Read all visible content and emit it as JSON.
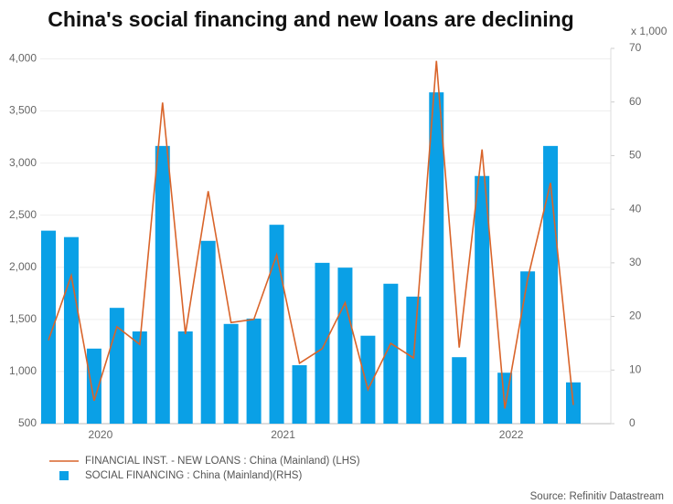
{
  "chart_data": {
    "type": "bar",
    "title": "China's social financing and new loans are declining",
    "y2_unit": "x 1,000",
    "source": "Source: Refinitiv Datastream",
    "categories": [
      null,
      null,
      "2020",
      null,
      null,
      null,
      null,
      null,
      null,
      null,
      "2021",
      null,
      null,
      null,
      null,
      null,
      null,
      null,
      null,
      null,
      "2022",
      null,
      null,
      null
    ],
    "series": [
      {
        "name": "FINANCIAL INST. - NEW LOANS : China (Mainland) (LHS)",
        "type": "line",
        "color": "#d9642a",
        "values": [
          1300,
          1920,
          720,
          1430,
          1260,
          3580,
          1360,
          2730,
          1470,
          1500,
          2120,
          1080,
          1220,
          1660,
          826,
          1270,
          1130,
          3980,
          1230,
          3130,
          645,
          1890,
          2810,
          679
        ]
      },
      {
        "name": "SOCIAL FINANCING : China (Mainland)(RHS)",
        "type": "bar",
        "axis": "y2",
        "color": "#0aa0e6",
        "values": [
          36.0,
          34.8,
          14.0,
          21.6,
          17.2,
          51.8,
          17.2,
          34.1,
          18.6,
          19.6,
          37.1,
          10.9,
          30.0,
          29.1,
          16.4,
          26.1,
          23.7,
          61.8,
          12.4,
          46.2,
          9.5,
          28.4,
          51.8,
          7.7
        ]
      }
    ],
    "ylim": [
      500,
      4100
    ],
    "yticks": [
      500,
      {
        "value": 1000,
        "label": "1,000"
      },
      {
        "value": 1500,
        "label": "1,500"
      },
      {
        "value": 2000,
        "label": "2,000"
      },
      {
        "value": 2500,
        "label": "2,500"
      },
      {
        "value": 3000,
        "label": "3,000"
      },
      {
        "value": 3500,
        "label": "3,500"
      },
      {
        "value": 4000,
        "label": "4,000"
      }
    ],
    "y2lim": [
      0,
      70
    ],
    "y2ticks": [
      0,
      10,
      20,
      30,
      40,
      50,
      60,
      70
    ],
    "grid": true
  }
}
